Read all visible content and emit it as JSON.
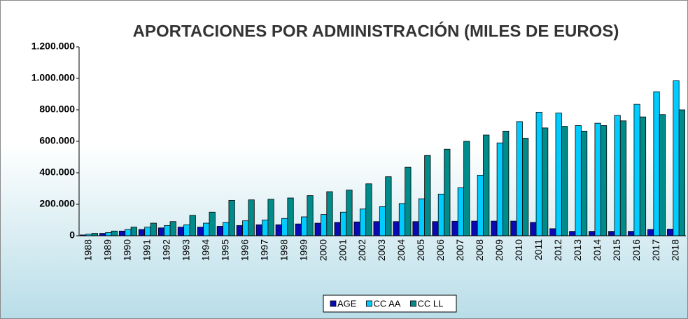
{
  "chart_data": {
    "type": "bar",
    "title": "APORTACIONES POR ADMINISTRACIÓN (MILES DE EUROS)",
    "categories": [
      "1988",
      "1989",
      "1990",
      "1991",
      "1992",
      "1993",
      "1994",
      "1995",
      "1996",
      "1997",
      "1998",
      "1999",
      "2000",
      "2001",
      "2002",
      "2003",
      "2004",
      "2005",
      "2006",
      "2007",
      "2008",
      "2009",
      "2010",
      "2011",
      "2012",
      "2013",
      "2014",
      "2015",
      "2016",
      "2017",
      "2018"
    ],
    "series": [
      {
        "name": "AGE",
        "color": "#0a0ab4",
        "values": [
          5000,
          15000,
          30000,
          40000,
          50000,
          55000,
          55000,
          60000,
          65000,
          70000,
          70000,
          75000,
          80000,
          85000,
          88000,
          90000,
          90000,
          90000,
          90000,
          92000,
          93000,
          93000,
          93000,
          85000,
          45000,
          28000,
          28000,
          28000,
          28000,
          40000,
          42000
        ]
      },
      {
        "name": "CC AA",
        "color": "#00ccff",
        "values": [
          10000,
          20000,
          40000,
          55000,
          65000,
          70000,
          80000,
          85000,
          95000,
          100000,
          110000,
          120000,
          135000,
          150000,
          170000,
          185000,
          205000,
          235000,
          265000,
          305000,
          385000,
          590000,
          725000,
          785000,
          780000,
          700000,
          715000,
          765000,
          835000,
          915000,
          985000
        ]
      },
      {
        "name": "CC LL",
        "color": "#008b8b",
        "values": [
          15000,
          30000,
          55000,
          80000,
          90000,
          130000,
          150000,
          225000,
          228000,
          232000,
          240000,
          255000,
          280000,
          290000,
          330000,
          375000,
          435000,
          510000,
          550000,
          600000,
          640000,
          665000,
          620000,
          685000,
          695000,
          665000,
          700000,
          730000,
          755000,
          770000,
          800000
        ]
      }
    ],
    "ylim": [
      0,
      1200000
    ],
    "yticks": [
      0,
      {
        "value": 200000,
        "label": "200.000"
      },
      {
        "value": 400000,
        "label": "400.000"
      },
      {
        "value": 600000,
        "label": "600.000"
      },
      {
        "value": 800000,
        "label": "800.000"
      },
      {
        "value": 1000000,
        "label": "1.000.000"
      },
      {
        "value": 1200000,
        "label": "1.200.000"
      }
    ],
    "grid": false,
    "legend": "bottom"
  }
}
